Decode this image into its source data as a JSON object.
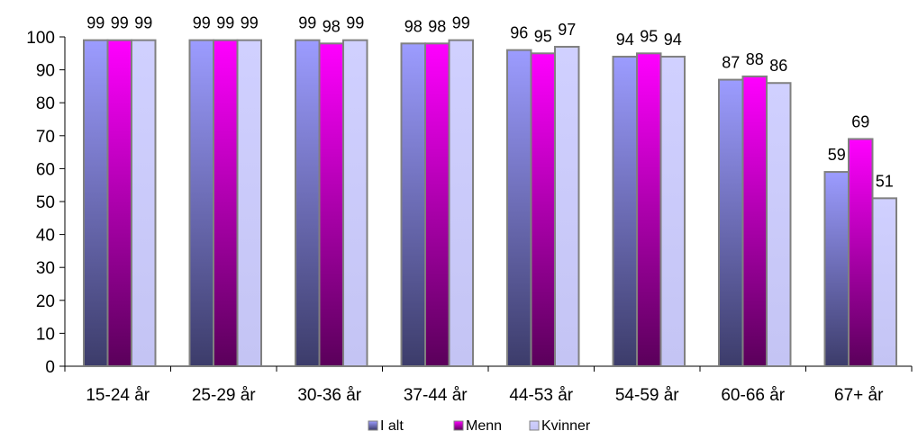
{
  "chart_data": {
    "type": "bar",
    "categories": [
      "15-24 år",
      "25-29 år",
      "30-36 år",
      "37-44 år",
      "44-53 år",
      "54-59 år",
      "60-66 år",
      "67+ år"
    ],
    "series": [
      {
        "name": "I alt",
        "values": [
          99,
          99,
          99,
          98,
          96,
          94,
          87,
          59
        ],
        "color_top": "#9c9cff",
        "color_bottom": "#3c3c6a"
      },
      {
        "name": "Menn",
        "values": [
          99,
          99,
          98,
          98,
          95,
          95,
          88,
          69
        ],
        "color_top": "#ff00ff",
        "color_bottom": "#5a005a"
      },
      {
        "name": "Kvinner",
        "values": [
          99,
          99,
          99,
          99,
          97,
          94,
          86,
          51
        ],
        "color_top": "#d0d0ff",
        "color_bottom": "#c4c4f4"
      }
    ],
    "yticks": [
      "0",
      "10",
      "20",
      "30",
      "40",
      "50",
      "60",
      "70",
      "80",
      "90",
      "100"
    ],
    "ylim": [
      0,
      100
    ],
    "grid": false,
    "legend_position": "bottom",
    "bar_outline_color": "#808080"
  }
}
